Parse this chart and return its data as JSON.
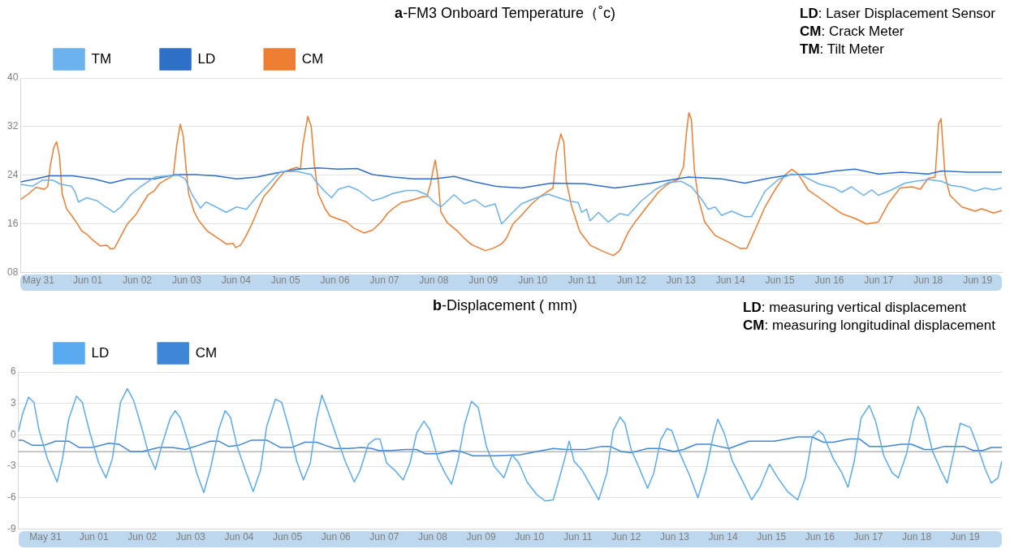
{
  "chart_data": [
    {
      "type": "line",
      "title": "a-FM3 Onboard Temperature（˚c)",
      "annotations": [
        "LD: Laser Displacement Sensor",
        "CM: Crack Meter",
        "TM: Tilt Meter"
      ],
      "legend": "top left",
      "grid": "y",
      "marker": "none",
      "line_style": "solid",
      "xlim": [
        "--05-30T15:22",
        "--06-19T11:46"
      ],
      "ylim": [
        8,
        40
      ],
      "yticks": [
        {
          "value": 8,
          "label": "08"
        },
        16,
        24,
        32,
        40
      ],
      "xticks": [
        {
          "value": "--05-31",
          "label": "May 31"
        },
        {
          "value": "--06-01",
          "label": "Jun 01"
        },
        {
          "value": "--06-02",
          "label": "Jun 02"
        },
        {
          "value": "--06-03",
          "label": "Jun 03"
        },
        {
          "value": "--06-04",
          "label": "Jun 04"
        },
        {
          "value": "--06-05",
          "label": "Jun 05"
        },
        {
          "value": "--06-06",
          "label": "Jun 06"
        },
        {
          "value": "--06-07",
          "label": "Jun 07"
        },
        {
          "value": "--06-08",
          "label": "Jun 08"
        },
        {
          "value": "--06-09",
          "label": "Jun 09"
        },
        {
          "value": "--06-10",
          "label": "Jun 10"
        },
        {
          "value": "--06-11",
          "label": "Jun 11"
        },
        {
          "value": "--06-12",
          "label": "Jun 12"
        },
        {
          "value": "--06-13",
          "label": "Jun 13"
        },
        {
          "value": "--06-14",
          "label": "Jun 14"
        },
        {
          "value": "--06-15",
          "label": "Jun 15"
        },
        {
          "value": "--06-16",
          "label": "Jun 16"
        },
        {
          "value": "--06-17",
          "label": "Jun 17"
        },
        {
          "value": "--06-18",
          "label": "Jun 18"
        },
        {
          "value": "--06-19",
          "label": "Jun 19"
        }
      ],
      "series": [
        {
          "name": "TM",
          "color": "#6cb2ee",
          "x": [
            "--05-30T15:22",
            "--05-30T21:07",
            "--05-31T01:55",
            "--05-31T06:58",
            "--05-31T11:02",
            "--05-31T16:05",
            "--05-31T17:46",
            "--05-31T19:26",
            "--05-31T23:31",
            "--06-01T04:34",
            "--06-01T08:38",
            "--06-01T12:43",
            "--06-01T16:05",
            "--06-01T20:53",
            "--06-02T01:55",
            "--06-02T08:24",
            "--06-02T15:07",
            "--06-02T20:10",
            "--06-02T23:17",
            "--06-03T02:38",
            "--06-03T06:43",
            "--06-03T09:22",
            "--06-03T14:10",
            "--06-03T19:12",
            "--06-04T00:14",
            "--06-04T05:02",
            "--06-04T10:05",
            "--06-04T16:48",
            "--06-04T21:36",
            "--06-05T06:00",
            "--06-05T12:29",
            "--06-05T14:53",
            "--06-05T19:12",
            "--06-05T22:19",
            "--06-06T01:41",
            "--06-06T06:43",
            "--06-06T11:31",
            "--06-06T18:14",
            "--06-06T23:17",
            "--06-07T04:05",
            "--06-07T10:48",
            "--06-07T15:36",
            "--06-07T20:38",
            "--06-08T00:00",
            "--06-08T03:22",
            "--06-08T09:50",
            "--06-08T14:53",
            "--06-08T19:55",
            "--06-09T00:43",
            "--06-09T05:46",
            "--06-09T08:53",
            "--06-09T13:41",
            "--06-09T18:29",
            "--06-10T00:58",
            "--06-10T07:26",
            "--06-10T10:48",
            "--06-10T17:17",
            "--06-10T22:05",
            "--06-10T23:46",
            "--06-11T02:10",
            "--06-11T03:50",
            "--06-11T07:55",
            "--06-11T12:43",
            "--06-11T18:14",
            "--06-11T22:19",
            "--06-12T04:48",
            "--06-12T11:17",
            "--06-12T17:46",
            "--06-13T00:14",
            "--06-13T05:02",
            "--06-13T10:05",
            "--06-13T13:12",
            "--06-13T16:34",
            "--06-13T19:41",
            "--06-14T00:29",
            "--06-14T06:58",
            "--06-14T10:19",
            "--06-14T16:48",
            "--06-14T23:17",
            "--06-15T05:46",
            "--06-15T10:34",
            "--06-15T18:43",
            "--06-16T02:38",
            "--06-16T06:00",
            "--06-16T10:48",
            "--06-16T16:34",
            "--06-16T20:38",
            "--06-16T23:46",
            "--06-17T06:14",
            "--06-17T12:43",
            "--06-17T17:31",
            "--06-18T00:00",
            "--06-18T06:29",
            "--06-18T11:17",
            "--06-18T16:19",
            "--06-18T22:48",
            "--06-19T03:36",
            "--06-19T07:41",
            "--06-19T11:46"
          ],
          "values": [
            22.5,
            22.2,
            23.2,
            23.2,
            22.5,
            22.2,
            21.3,
            19.6,
            20.3,
            19.8,
            18.8,
            17.9,
            18.8,
            20.8,
            22.2,
            23.7,
            23.9,
            24.0,
            23.4,
            20.8,
            18.6,
            19.6,
            18.8,
            17.9,
            18.8,
            18.4,
            20.5,
            22.9,
            24.6,
            24.6,
            24.1,
            22.9,
            21.3,
            20.3,
            21.7,
            22.2,
            21.5,
            19.8,
            20.3,
            21.0,
            21.5,
            21.5,
            20.8,
            19.6,
            18.8,
            20.8,
            19.3,
            20.0,
            18.8,
            19.3,
            16.0,
            17.7,
            19.3,
            20.2,
            20.9,
            20.5,
            19.8,
            19.5,
            17.9,
            18.4,
            16.5,
            17.9,
            16.3,
            17.7,
            17.4,
            19.8,
            21.6,
            22.8,
            23.0,
            22.1,
            20.0,
            18.4,
            18.8,
            17.4,
            18.1,
            17.2,
            17.2,
            21.4,
            23.3,
            24.2,
            24.0,
            22.6,
            21.9,
            21.2,
            22.1,
            20.7,
            21.6,
            20.7,
            21.6,
            22.7,
            23.0,
            23.3,
            23.0,
            22.3,
            22.1,
            21.4,
            21.9,
            21.6,
            21.9
          ]
        },
        {
          "name": "LD",
          "color": "#2e6fc8",
          "x": [
            "--05-30T15:22",
            "--05-30T22:48",
            "--05-31T05:17",
            "--05-31T16:48",
            "--06-01T02:53",
            "--06-01T11:02",
            "--06-01T19:12",
            "--06-02T08:24",
            "--06-02T18:29",
            "--06-03T04:19",
            "--06-03T14:10",
            "--06-04T00:14",
            "--06-04T10:05",
            "--06-04T19:55",
            "--06-05T06:00",
            "--06-05T15:50",
            "--06-06T01:41",
            "--06-06T10:48",
            "--06-06T18:14",
            "--06-07T04:05",
            "--06-07T14:10",
            "--06-08T00:00",
            "--06-08T09:50",
            "--06-08T19:55",
            "--06-09T05:46",
            "--06-09T08:53",
            "--06-09T18:29",
            "--06-10T09:07",
            "--06-11T01:26",
            "--06-11T15:50",
            "--06-12T09:36",
            "--06-13T03:36",
            "--06-13T19:41",
            "--06-14T06:58",
            "--06-14T18:29",
            "--06-15T05:46",
            "--06-15T17:02",
            "--06-16T02:38",
            "--06-16T12:29",
            "--06-16T23:46",
            "--06-17T11:02",
            "--06-18T00:00",
            "--06-18T06:29",
            "--06-18T19:26",
            "--06-19T11:46"
          ],
          "values": [
            22.9,
            23.4,
            23.9,
            23.9,
            23.4,
            22.7,
            23.4,
            23.4,
            24.1,
            24.1,
            23.9,
            23.4,
            23.7,
            24.4,
            25.0,
            25.2,
            25.0,
            25.1,
            24.1,
            23.7,
            23.4,
            23.4,
            23.8,
            22.9,
            22.2,
            22.1,
            21.9,
            22.7,
            22.6,
            21.9,
            22.7,
            23.7,
            23.4,
            22.7,
            23.5,
            24.1,
            24.2,
            24.7,
            25.0,
            24.2,
            24.5,
            24.2,
            24.7,
            24.5,
            24.5
          ]
        },
        {
          "name": "CM",
          "color": "#ed7d31",
          "x": [
            "--05-30T15:22",
            "--05-30T19:26",
            "--05-30T22:48",
            "--05-31T02:53",
            "--05-31T04:34",
            "--05-31T05:46",
            "--05-31T07:26",
            "--05-31T08:53",
            "--05-31T10:19",
            "--05-31T11:31",
            "--05-31T13:41",
            "--05-31T16:34",
            "--05-31T18:58",
            "--05-31T21:07",
            "--05-31T23:31",
            "--06-01T02:53",
            "--06-01T06:00",
            "--06-01T09:22",
            "--06-01T11:02",
            "--06-01T12:58",
            "--06-01T16:05",
            "--06-01T19:12",
            "--06-01T23:31",
            "--06-02T01:55",
            "--06-02T05:17",
            "--06-02T08:24",
            "--06-02T11:02",
            "--06-02T15:07",
            "--06-02T17:31",
            "--06-02T19:12",
            "--06-02T20:53",
            "--06-02T22:19",
            "--06-02T23:46",
            "--06-03T00:58",
            "--06-03T03:36",
            "--06-03T06:00",
            "--06-03T10:05",
            "--06-03T12:43",
            "--06-03T15:50",
            "--06-03T19:12",
            "--06-03T22:34",
            "--06-03T23:46",
            "--06-04T02:10",
            "--06-04T04:48",
            "--06-04T07:41",
            "--06-04T10:48",
            "--06-04T13:26",
            "--06-04T16:48",
            "--06-04T19:55",
            "--06-04T23:17",
            "--06-05T02:38",
            "--06-05T05:31",
            "--06-05T07:12",
            "--06-05T08:24",
            "--06-05T10:48",
            "--06-05T12:29",
            "--06-05T13:55",
            "--06-05T15:50",
            "--06-05T19:12",
            "--06-05T21:36",
            "--06-06T01:41",
            "--06-06T05:46",
            "--06-06T09:07",
            "--06-06T14:10",
            "--06-06T18:14",
            "--06-06T22:19",
            "--06-07T01:41",
            "--06-07T04:05",
            "--06-07T08:10",
            "--06-07T12:00",
            "--06-07T14:10",
            "--06-07T18:58",
            "--06-07T20:38",
            "--06-07T22:19",
            "--06-08T00:00",
            "--06-08T00:43",
            "--06-08T02:10",
            "--06-08T03:22",
            "--06-08T06:29",
            "--06-08T11:31",
            "--06-08T14:53",
            "--06-08T18:14",
            "--06-08T22:19",
            "--06-09T00:58",
            "--06-09T04:48",
            "--06-09T08:53",
            "--06-09T11:17",
            "--06-09T14:24",
            "--06-09T18:29",
            "--06-09T23:31",
            "--06-10T03:36",
            "--06-10T07:26",
            "--06-10T09:50",
            "--06-10T11:31",
            "--06-10T13:41",
            "--06-10T15:07",
            "--06-10T16:19",
            "--06-10T18:58",
            "--06-10T22:48",
            "--06-11T03:50",
            "--06-11T09:22",
            "--06-11T15:07",
            "--06-11T18:14",
            "--06-11T22:19",
            "--06-12T01:41",
            "--06-12T06:29",
            "--06-12T12:58",
            "--06-12T17:46",
            "--06-12T22:34",
            "--06-13T01:12",
            "--06-13T02:38",
            "--06-13T03:50",
            "--06-13T05:02",
            "--06-13T06:29",
            "--06-13T08:24",
            "--06-13T11:31",
            "--06-13T16:34",
            "--06-13T23:02",
            "--06-14T04:34",
            "--06-14T07:55",
            "--06-14T12:00",
            "--06-14T16:48",
            "--06-14T21:36",
            "--06-15T02:24",
            "--06-15T05:46",
            "--06-15T08:53",
            "--06-15T13:41",
            "--06-15T20:24",
            "--06-16T01:12",
            "--06-16T06:00",
            "--06-16T12:29",
            "--06-16T18:00",
            "--06-16T23:46",
            "--06-17T04:34",
            "--06-17T10:19",
            "--06-17T16:05",
            "--06-17T20:10",
            "--06-18T00:00",
            "--06-18T03:22",
            "--06-18T05:02",
            "--06-18T06:14",
            "--06-18T08:10",
            "--06-18T10:34",
            "--06-18T16:19",
            "--06-18T22:48",
            "--06-19T01:55",
            "--06-19T07:41",
            "--06-19T11:46"
          ],
          "values": [
            20.0,
            21.0,
            22.0,
            21.7,
            22.2,
            25.5,
            28.5,
            29.5,
            27,
            21,
            18.5,
            17.2,
            16,
            14.8,
            14.3,
            13.2,
            12.4,
            12.5,
            11.9,
            12.0,
            14.0,
            16.0,
            17.6,
            19.0,
            20.8,
            21.5,
            22.7,
            23.5,
            24.0,
            29,
            32.4,
            30.5,
            25,
            21,
            18,
            16.5,
            14.8,
            14.2,
            13.5,
            12.7,
            12.8,
            12.1,
            12.5,
            14,
            16.0,
            18.5,
            20.5,
            21.8,
            23.2,
            24.5,
            25,
            25.3,
            25,
            29,
            33.7,
            32,
            26,
            21,
            18.5,
            17.3,
            16.8,
            16.3,
            15.3,
            14.5,
            15.0,
            16.3,
            17.8,
            18.5,
            19.5,
            19.8,
            20,
            20.5,
            20.5,
            22.5,
            25.5,
            26.5,
            23,
            18,
            16.2,
            14.8,
            13.6,
            12.6,
            12.0,
            11.6,
            12.0,
            12.7,
            13.7,
            16.0,
            17.4,
            19.3,
            20.5,
            21.4,
            21.9,
            27.7,
            30.8,
            29.4,
            23.0,
            18.8,
            14.8,
            12.5,
            11.6,
            10.8,
            11.6,
            14.6,
            16.3,
            18.4,
            21.2,
            22.6,
            23.3,
            25.4,
            31.0,
            34.3,
            33.1,
            24.9,
            20.2,
            16.3,
            14.1,
            13.0,
            12.0,
            12.0,
            15.1,
            18.8,
            21.6,
            24.0,
            25.0,
            24.2,
            21.6,
            20.0,
            18.8,
            17.7,
            16.9,
            16.0,
            16.3,
            19.3,
            21.9,
            22.1,
            21.7,
            23.5,
            23.7,
            32.4,
            33.3,
            24.0,
            20.7,
            18.8,
            18.1,
            18.5,
            17.8,
            18.2
          ]
        }
      ]
    },
    {
      "type": "line",
      "title": "b-Displacement ( mm)",
      "annotations": [
        "LD: measuring vertical displacement",
        "CM: measuring longitudinal displacement"
      ],
      "legend": "top left",
      "grid": "y",
      "marker": "none",
      "line_style": "solid",
      "xlim": [
        "--05-30T10:34",
        "--06-19T18:14"
      ],
      "ylim": [
        -9,
        6
      ],
      "yticks": [
        -9,
        -6,
        -3,
        0,
        3,
        6
      ],
      "xticks": [
        {
          "value": "--05-31",
          "label": "May 31"
        },
        {
          "value": "--06-01",
          "label": "Jun 01"
        },
        {
          "value": "--06-02",
          "label": "Jun 02"
        },
        {
          "value": "--06-03",
          "label": "Jun 03"
        },
        {
          "value": "--06-04",
          "label": "Jun 04"
        },
        {
          "value": "--06-05",
          "label": "Jun 05"
        },
        {
          "value": "--06-06",
          "label": "Jun 06"
        },
        {
          "value": "--06-07",
          "label": "Jun 07"
        },
        {
          "value": "--06-08",
          "label": "Jun 08"
        },
        {
          "value": "--06-09",
          "label": "Jun 09"
        },
        {
          "value": "--06-10",
          "label": "Jun 10"
        },
        {
          "value": "--06-11",
          "label": "Jun 11"
        },
        {
          "value": "--06-12",
          "label": "Jun 12"
        },
        {
          "value": "--06-13",
          "label": "Jun 13"
        },
        {
          "value": "--06-14",
          "label": "Jun 14"
        },
        {
          "value": "--06-15",
          "label": "Jun 15"
        },
        {
          "value": "--06-16",
          "label": "Jun 16"
        },
        {
          "value": "--06-17",
          "label": "Jun 17"
        },
        {
          "value": "--06-18",
          "label": "Jun 18"
        },
        {
          "value": "--06-19",
          "label": "Jun 19"
        }
      ],
      "ref_lines": [
        {
          "axis": "y",
          "value": -1.6,
          "color": "#a6a6a6"
        }
      ],
      "series": [
        {
          "name": "LD",
          "color": "#5aaaf0",
          "x": [
            "--05-30T10:34",
            "--05-30T12:29",
            "--05-30T15:36",
            "--05-30T18:14",
            "--05-30T20:53",
            "--05-31T00:58",
            "--05-31T05:46",
            "--05-31T08:24",
            "--05-31T11:31",
            "--05-31T15:22",
            "--05-31T18:14",
            "--05-31T21:36",
            "--06-01T02:24",
            "--06-01T06:00",
            "--06-01T09:07",
            "--06-01T13:12",
            "--06-01T16:34",
            "--06-01T19:41",
            "--06-02T00:00",
            "--06-02T03:07",
            "--06-02T06:29",
            "--06-02T09:50",
            "--06-02T13:55",
            "--06-02T16:19",
            "--06-02T18:58",
            "--06-02T23:02",
            "--06-03T03:07",
            "--06-03T06:29",
            "--06-03T09:50",
            "--06-03T13:55",
            "--06-03T17:02",
            "--06-03T19:41",
            "--06-03T23:02",
            "--06-04T03:07",
            "--06-04T06:58",
            "--06-04T10:34",
            "--06-04T13:41",
            "--06-04T18:00",
            "--06-04T21:07",
            "--06-05T01:12",
            "--06-05T04:34",
            "--06-05T07:55",
            "--06-05T11:17",
            "--06-05T14:24",
            "--06-05T17:02",
            "--06-05T19:26",
            "--06-05T23:31",
            "--06-06T04:34",
            "--06-06T09:07",
            "--06-06T12:00",
            "--06-06T16:05",
            "--06-06T19:26",
            "--06-06T21:50",
            "--06-07T01:12",
            "--06-07T05:17",
            "--06-07T09:22",
            "--06-07T12:43",
            "--06-07T16:05",
            "--06-07T19:41",
            "--06-07T22:34",
            "--06-08T02:38",
            "--06-08T06:14",
            "--06-08T09:22",
            "--06-08T12:43",
            "--06-08T15:50",
            "--06-08T19:12",
            "--06-08T22:34",
            "--06-09T02:38",
            "--06-09T06:29",
            "--06-09T11:17",
            "--06-09T15:22",
            "--06-09T18:43",
            "--06-09T22:48",
            "--06-10T03:36",
            "--06-10T07:41",
            "--06-10T11:46",
            "--06-10T14:53",
            "--06-10T17:17",
            "--06-10T19:41",
            "--06-10T22:05",
            "--06-11T02:10",
            "--06-11T06:14",
            "--06-11T10:19",
            "--06-11T14:24",
            "--06-11T17:31",
            "--06-11T20:53",
            "--06-11T23:17",
            "--06-12T02:24",
            "--06-12T06:29",
            "--06-12T10:34",
            "--06-12T13:41",
            "--06-12T17:02",
            "--06-12T20:10",
            "--06-12T22:34",
            "--06-13T02:38",
            "--06-13T07:26",
            "--06-13T11:31",
            "--06-13T15:36",
            "--06-13T18:58",
            "--06-13T21:22",
            "--06-14T00:29",
            "--06-14T04:34",
            "--06-14T09:22",
            "--06-14T14:10",
            "--06-14T18:14",
            "--06-14T23:02",
            "--06-15T03:07",
            "--06-15T07:55",
            "--06-15T12:58",
            "--06-15T16:48",
            "--06-15T20:10",
            "--06-15T23:17",
            "--06-16T01:41",
            "--06-16T06:43",
            "--06-16T10:48",
            "--06-16T13:55",
            "--06-16T17:02",
            "--06-16T20:24",
            "--06-17T00:29",
            "--06-17T03:36",
            "--06-17T07:41",
            "--06-17T11:46",
            "--06-17T14:53",
            "--06-17T18:58",
            "--06-17T22:19",
            "--06-18T00:43",
            "--06-18T03:50",
            "--06-18T07:55",
            "--06-18T12:00",
            "--06-18T15:07",
            "--06-18T18:29",
            "--06-18T21:36",
            "--06-19T02:38",
            "--06-19T05:46",
            "--06-19T09:50",
            "--06-19T12:58",
            "--06-19T16:19",
            "--06-19T18:14"
          ],
          "values": [
            0.3,
            1.9,
            3.6,
            3.1,
            0.4,
            -2.3,
            -4.5,
            -2.3,
            1.5,
            3.7,
            3.1,
            0.5,
            -2.7,
            -4.1,
            -2.3,
            3.1,
            4.4,
            3.3,
            0.5,
            -1.8,
            -3.3,
            -0.9,
            1.6,
            2.3,
            1.6,
            -0.9,
            -3.7,
            -5.5,
            -3.2,
            0.5,
            2.3,
            1.7,
            -1.1,
            -3.4,
            -5.4,
            -3.4,
            0.8,
            3.4,
            3.1,
            0.3,
            -2.5,
            -4.3,
            -2.7,
            1.5,
            3.8,
            2.6,
            0.3,
            -2.5,
            -4.5,
            -3.4,
            -0.9,
            -0.4,
            -0.4,
            -2.7,
            -3.4,
            -4.3,
            -2.7,
            0.2,
            1.3,
            0.5,
            -2.3,
            -3.7,
            -4.7,
            -2.3,
            1.0,
            3.2,
            2.6,
            -1.1,
            -3.0,
            -4.1,
            -1.9,
            -2.7,
            -4.5,
            -5.7,
            -6.3,
            -6.2,
            -4.1,
            -2.4,
            -0.6,
            -2.5,
            -3.4,
            -4.8,
            -6.2,
            -3.6,
            0.4,
            1.7,
            1.1,
            -1.4,
            -3.2,
            -5.1,
            -3.6,
            -0.5,
            0.6,
            0.4,
            -1.8,
            -3.9,
            -6.0,
            -3.4,
            -0.2,
            1.5,
            0.2,
            -2.5,
            -4.3,
            -6.2,
            -5.0,
            -2.8,
            -4.1,
            -5.4,
            -6.2,
            -4.1,
            -0.2,
            0.4,
            0.0,
            -2.3,
            -3.6,
            -5.0,
            -2.5,
            1.6,
            2.8,
            1.3,
            -2.0,
            -3.6,
            -4.1,
            -1.8,
            1.3,
            2.7,
            1.6,
            -1.6,
            -3.4,
            -4.6,
            -1.6,
            1.1,
            0.7,
            -0.9,
            -3.2,
            -4.6,
            -4.1,
            -2.5
          ]
        },
        {
          "name": "CM",
          "color": "#3f87d6",
          "x": [
            "--05-30T10:34",
            "--05-30T12:29",
            "--05-30T17:31",
            "--05-30T23:17",
            "--05-31T05:02",
            "--05-31T11:31",
            "--05-31T16:34",
            "--05-31T23:17",
            "--06-01T07:26",
            "--06-01T12:29",
            "--06-01T18:14",
            "--06-02T00:00",
            "--06-02T08:10",
            "--06-02T14:53",
            "--06-02T21:22",
            "--06-03T03:50",
            "--06-03T09:50",
            "--06-03T13:55",
            "--06-03T18:43",
            "--06-03T23:46",
            "--06-04T06:14",
            "--06-04T13:41",
            "--06-04T20:24",
            "--06-05T02:10",
            "--06-05T08:38",
            "--06-05T14:24",
            "--06-05T18:43",
            "--06-05T23:31",
            "--06-06T06:14",
            "--06-06T12:43",
            "--06-06T17:46",
            "--06-06T21:07",
            "--06-07T03:36",
            "--06-07T10:19",
            "--06-07T16:05",
            "--06-07T20:10",
            "--06-08T02:38",
            "--06-08T10:05",
            "--06-08T14:10",
            "--06-08T19:55",
            "--06-09T05:02",
            "--06-09T06:29",
            "--06-09T19:26",
            "--06-10T03:36",
            "--06-10T11:46",
            "--06-10T18:00",
            "--06-11T03:50",
            "--06-11T12:00",
            "--06-11T15:50",
            "--06-11T21:36",
            "--06-12T02:24",
            "--06-12T10:34",
            "--06-12T17:02",
            "--06-12T23:31",
            "--06-13T04:19",
            "--06-13T10:48",
            "--06-13T17:17",
            "--06-13T22:05",
            "--06-14T02:53",
            "--06-14T12:43",
            "--06-15T01:26",
            "--06-15T12:58",
            "--06-15T20:10",
            "--06-16T01:41",
            "--06-16T06:43",
            "--06-16T14:38",
            "--06-16T19:41",
            "--06-17T00:29",
            "--06-17T08:24",
            "--06-17T16:34",
            "--06-17T21:22",
            "--06-18T03:50",
            "--06-18T07:55",
            "--06-18T13:41",
            "--06-18T23:17",
            "--06-19T04:05",
            "--06-19T08:53",
            "--06-19T12:58",
            "--06-19T18:14"
          ],
          "values": [
            -0.5,
            -0.5,
            -1.0,
            -1.0,
            -0.6,
            -0.6,
            -1.2,
            -1.2,
            -0.8,
            -0.9,
            -1.6,
            -1.6,
            -1.2,
            -1.2,
            -1.4,
            -1.0,
            -0.6,
            -0.6,
            -1.1,
            -1.0,
            -0.5,
            -0.5,
            -1.2,
            -1.2,
            -0.7,
            -0.7,
            -1.0,
            -1.3,
            -1.3,
            -1.2,
            -1.3,
            -1.5,
            -1.5,
            -1.4,
            -1.4,
            -1.8,
            -1.8,
            -1.5,
            -1.6,
            -2.0,
            -2.0,
            -2.0,
            -1.9,
            -1.6,
            -1.3,
            -1.4,
            -1.4,
            -1.1,
            -1.1,
            -1.6,
            -1.7,
            -1.3,
            -1.3,
            -1.6,
            -1.4,
            -0.9,
            -0.9,
            -1.1,
            -1.3,
            -0.6,
            -0.6,
            -0.2,
            -0.2,
            -0.7,
            -0.7,
            -0.4,
            -0.4,
            -1.1,
            -1.1,
            -0.9,
            -0.9,
            -1.4,
            -1.4,
            -1.1,
            -1.1,
            -1.5,
            -1.5,
            -1.2,
            -1.2
          ]
        }
      ]
    }
  ]
}
